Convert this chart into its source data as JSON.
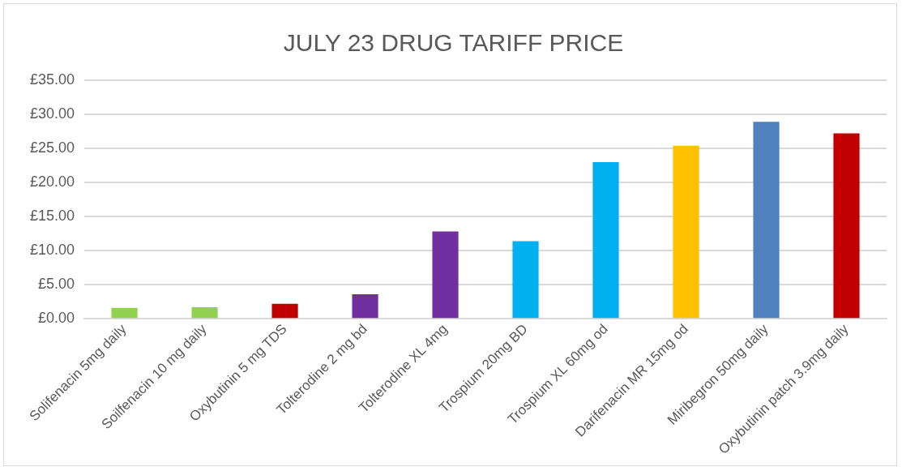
{
  "chart_data": {
    "type": "bar",
    "title": "JULY 23 DRUG TARIFF PRICE",
    "categories": [
      "Solifenacin 5mg daily",
      "Soilfenacin 10 mg daily",
      "Oxybutinin 5 mg TDS",
      "Tolterodine 2 mg bd",
      "Tolterodine XL 4mg",
      "Trospium 20mg BD",
      "Trospium XL 60mg od",
      "Darifenacin MR 15mg od",
      "Miribegron 50mg daily",
      "Oxybutinin patch 3.9mg daily"
    ],
    "values": [
      1.6,
      1.7,
      2.2,
      3.6,
      12.8,
      11.4,
      23.0,
      25.4,
      28.9,
      27.2
    ],
    "colors": [
      "#92d050",
      "#92d050",
      "#c00000",
      "#7030a0",
      "#7030a0",
      "#00b0f0",
      "#00b0f0",
      "#ffc000",
      "#4f81bd",
      "#c00000"
    ],
    "ylim": [
      0,
      35
    ],
    "yticks": [
      {
        "value": 0,
        "label": "£0.00"
      },
      {
        "value": 5,
        "label": "£5.00"
      },
      {
        "value": 10,
        "label": "£10.00"
      },
      {
        "value": 15,
        "label": "£15.00"
      },
      {
        "value": 20,
        "label": "£20.00"
      },
      {
        "value": 25,
        "label": "£25.00"
      },
      {
        "value": 30,
        "label": "£30.00"
      },
      {
        "value": 35,
        "label": "£35.00"
      }
    ],
    "grid": "y",
    "legend": false
  }
}
